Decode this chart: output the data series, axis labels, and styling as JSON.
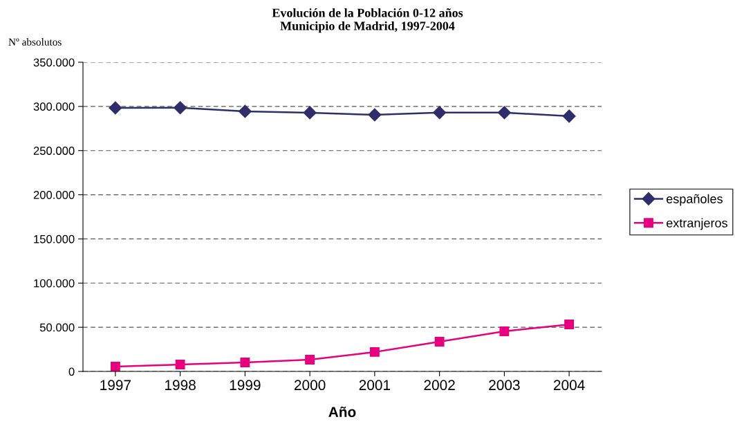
{
  "chart_data": {
    "type": "line",
    "title": "Evolución de la Población 0-12 años\nMunicipio de Madrid, 1997-2004",
    "ylabel": "Nº absolutos",
    "xlabel": "Año",
    "categories": [
      "1997",
      "1998",
      "1999",
      "2000",
      "2001",
      "2002",
      "2003",
      "2004"
    ],
    "series": [
      {
        "name": "españoles",
        "color": "#2e2e6b",
        "marker": "diamond",
        "values": [
          298300,
          298500,
          294400,
          292900,
          290500,
          293000,
          293000,
          289000
        ]
      },
      {
        "name": "extranjeros",
        "color": "#e6007e",
        "marker": "square",
        "values": [
          5500,
          7800,
          10200,
          13300,
          22000,
          33700,
          45400,
          53200
        ]
      }
    ],
    "ylim": [
      0,
      350000
    ],
    "yticks": [
      0,
      {
        "value": 50000,
        "label": "50.000"
      },
      {
        "value": 100000,
        "label": "100.000"
      },
      {
        "value": 150000,
        "label": "150.000"
      },
      {
        "value": 200000,
        "label": "200.000"
      },
      {
        "value": 250000,
        "label": "250.000"
      },
      {
        "value": 300000,
        "label": "300.000"
      },
      {
        "value": 350000,
        "label": "350.000"
      }
    ],
    "grid": "y",
    "legend": "right"
  }
}
